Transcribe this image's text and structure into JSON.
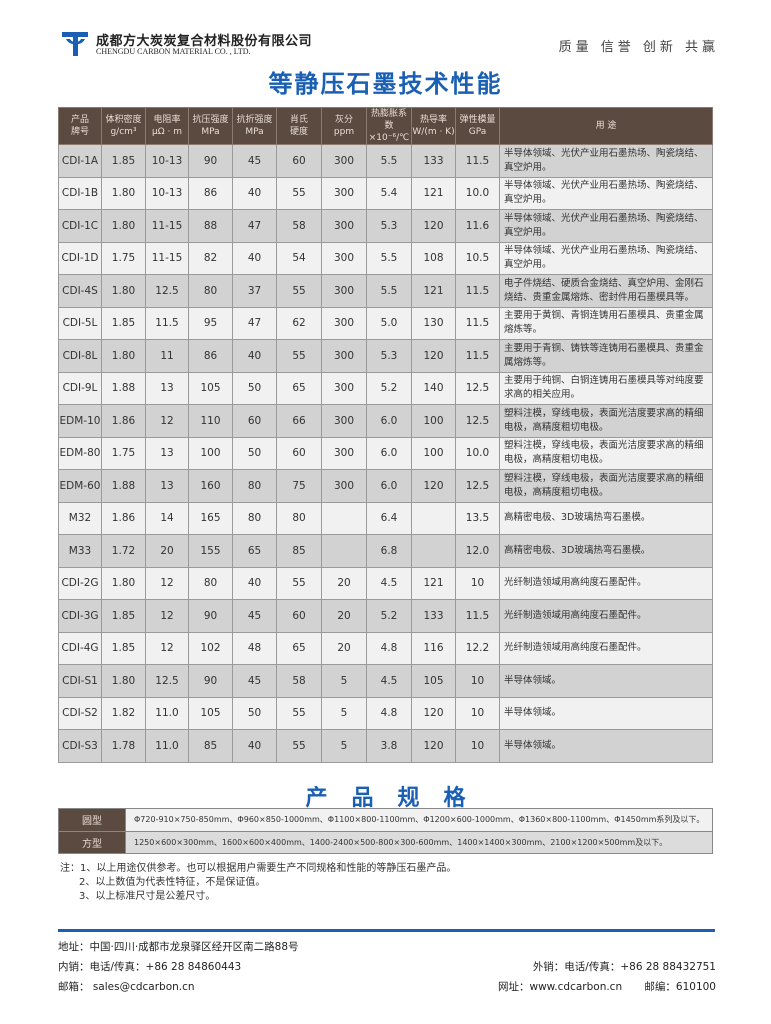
{
  "header": {
    "company_cn": "成都方大炭炭复合材料股份有限公司",
    "company_en": "CHENGDU CARBON MATERIAL CO. , LTD.",
    "slogan": "质量  信誉  创新  共赢",
    "brand_color": "#1a5fb4"
  },
  "title": "等静压石墨技术性能",
  "table": {
    "headers": [
      [
        "产品",
        "牌号"
      ],
      [
        "体积密度",
        "g/cm³"
      ],
      [
        "电阻率",
        "μΩ · m"
      ],
      [
        "抗压强度",
        "MPa"
      ],
      [
        "抗折强度",
        "MPa"
      ],
      [
        "肖氏",
        "硬度"
      ],
      [
        "灰分",
        "ppm"
      ],
      [
        "热膨胀系数",
        "×10⁻⁶/℃"
      ],
      [
        "热导率",
        "W/(m · K)"
      ],
      [
        "弹性模量",
        "GPa"
      ],
      [
        "用 途",
        ""
      ]
    ],
    "rows": [
      [
        "CDI-1A",
        "1.85",
        "10-13",
        "90",
        "45",
        "60",
        "300",
        "5.5",
        "133",
        "11.5",
        "半导体领域、光伏产业用石墨热场、陶瓷烧结、真空炉用。"
      ],
      [
        "CDI-1B",
        "1.80",
        "10-13",
        "86",
        "40",
        "55",
        "300",
        "5.4",
        "121",
        "10.0",
        "半导体领域、光伏产业用石墨热场、陶瓷烧结、真空炉用。"
      ],
      [
        "CDI-1C",
        "1.80",
        "11-15",
        "88",
        "47",
        "58",
        "300",
        "5.3",
        "120",
        "11.6",
        "半导体领域、光伏产业用石墨热场、陶瓷烧结、真空炉用。"
      ],
      [
        "CDI-1D",
        "1.75",
        "11-15",
        "82",
        "40",
        "54",
        "300",
        "5.5",
        "108",
        "10.5",
        "半导体领域、光伏产业用石墨热场、陶瓷烧结、真空炉用。"
      ],
      [
        "CDI-4S",
        "1.80",
        "12.5",
        "80",
        "37",
        "55",
        "300",
        "5.5",
        "121",
        "11.5",
        "电子件烧结、硬质合金烧结、真空炉用、金刚石烧结、贵重金属熔炼、密封件用石墨模具等。"
      ],
      [
        "CDI-5L",
        "1.85",
        "11.5",
        "95",
        "47",
        "62",
        "300",
        "5.0",
        "130",
        "11.5",
        "主要用于黄铜、青铜连铸用石墨模具、贵重金属熔炼等。"
      ],
      [
        "CDI-8L",
        "1.80",
        "11",
        "86",
        "40",
        "55",
        "300",
        "5.3",
        "120",
        "11.5",
        "主要用于青铜、铸铁等连铸用石墨模具、贵重金属熔炼等。"
      ],
      [
        "CDI-9L",
        "1.88",
        "13",
        "105",
        "50",
        "65",
        "300",
        "5.2",
        "140",
        "12.5",
        "主要用于纯铜、白铜连铸用石墨模具等对纯度要求高的相关应用。"
      ],
      [
        "EDM-10",
        "1.86",
        "12",
        "110",
        "60",
        "66",
        "300",
        "6.0",
        "100",
        "12.5",
        "塑料注模，穿线电极，表面光洁度要求高的精细电极，高精度粗切电极。"
      ],
      [
        "EDM-80",
        "1.75",
        "13",
        "100",
        "50",
        "60",
        "300",
        "6.0",
        "100",
        "10.0",
        "塑料注模，穿线电极，表面光洁度要求高的精细电极，高精度粗切电极。"
      ],
      [
        "EDM-60",
        "1.88",
        "13",
        "160",
        "80",
        "75",
        "300",
        "6.0",
        "120",
        "12.5",
        "塑料注模，穿线电极，表面光洁度要求高的精细电极，高精度粗切电极。"
      ],
      [
        "M32",
        "1.86",
        "14",
        "165",
        "80",
        "80",
        "",
        "6.4",
        "",
        "13.5",
        "高精密电极、3D玻璃热弯石墨模。"
      ],
      [
        "M33",
        "1.72",
        "20",
        "155",
        "65",
        "85",
        "",
        "6.8",
        "",
        "12.0",
        "高精密电极、3D玻璃热弯石墨模。"
      ],
      [
        "CDI-2G",
        "1.80",
        "12",
        "80",
        "40",
        "55",
        "20",
        "4.5",
        "121",
        "10",
        "光纤制造领域用高纯度石墨配件。"
      ],
      [
        "CDI-3G",
        "1.85",
        "12",
        "90",
        "45",
        "60",
        "20",
        "5.2",
        "133",
        "11.5",
        "光纤制造领域用高纯度石墨配件。"
      ],
      [
        "CDI-4G",
        "1.85",
        "12",
        "102",
        "48",
        "65",
        "20",
        "4.8",
        "116",
        "12.2",
        "光纤制造领域用高纯度石墨配件。"
      ],
      [
        "CDI-S1",
        "1.80",
        "12.5",
        "90",
        "45",
        "58",
        "5",
        "4.5",
        "105",
        "10",
        "半导体领域。"
      ],
      [
        "CDI-S2",
        "1.82",
        "11.0",
        "105",
        "50",
        "55",
        "5",
        "4.8",
        "120",
        "10",
        "半导体领域。"
      ],
      [
        "CDI-S3",
        "1.78",
        "11.0",
        "85",
        "40",
        "55",
        "5",
        "3.8",
        "120",
        "10",
        "半导体领域。"
      ]
    ]
  },
  "specs": {
    "title": "产品规格",
    "rows": [
      {
        "type": "圆型",
        "value": "Φ720-910×750-850mm、Φ960×850-1000mm、Φ1100×800-1100mm、Φ1200×600-1000mm、Φ1360×800-1100mm、Φ1450mm系列及以下。"
      },
      {
        "type": "方型",
        "value": "1250×600×300mm、1600×600×400mm、1400-2400×500-800×300-600mm、1400×1400×300mm、2100×1200×500mm及以下。"
      }
    ]
  },
  "notes": [
    "注：1、以上用途仅供参考。也可以根据用户需要生产不同规格和性能的等静压石墨产品。",
    "2、以上数值为代表性特征，不是保证值。",
    "3、以上标准尺寸是公差尺寸。"
  ],
  "footer": {
    "address": "地址：中国·四川·成都市龙泉驿区经开区南二路88号",
    "domestic": "内销：电话/传真：+86 28 84860443",
    "export": "外销：电话/传真：+86 28 88432751",
    "email": "邮箱： sales@cdcarbon.cn",
    "website": "网址：www.cdcarbon.cn",
    "postcode": "邮编：610100"
  }
}
